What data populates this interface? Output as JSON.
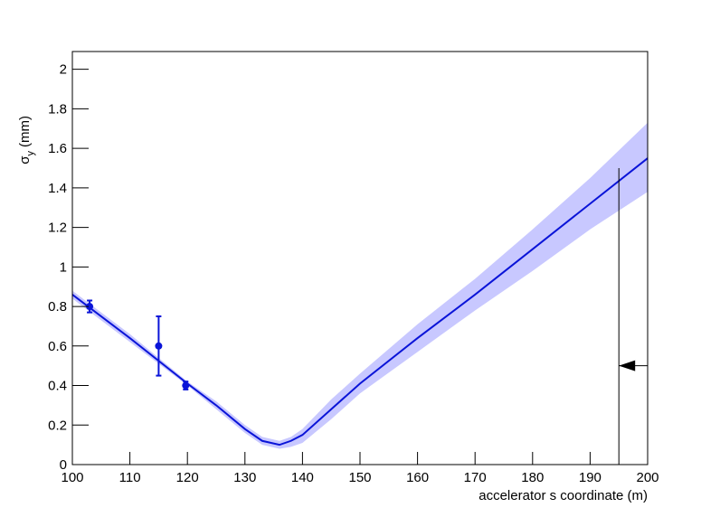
{
  "chart_data": {
    "type": "fit",
    "xlabel": "accelerator s coordinate (m)",
    "ylabel": {
      "symbol": "σ",
      "subscript": "y",
      "unit": "(mm)"
    },
    "xlim": [
      100,
      200
    ],
    "ylim": [
      0,
      2.09
    ],
    "xticks": [
      100,
      110,
      120,
      130,
      140,
      150,
      160,
      170,
      180,
      190,
      200
    ],
    "yticks": [
      0,
      0.2,
      0.4,
      0.6,
      0.8,
      1,
      1.2,
      1.4,
      1.6,
      1.8,
      2
    ],
    "band": {
      "color": "#c8c8ff",
      "x": [
        100,
        110,
        120,
        125,
        130,
        133,
        136,
        138,
        140,
        145,
        150,
        160,
        170,
        180,
        190,
        200
      ],
      "lower": [
        0.84,
        0.62,
        0.4,
        0.28,
        0.16,
        0.1,
        0.08,
        0.09,
        0.11,
        0.23,
        0.36,
        0.57,
        0.78,
        0.98,
        1.19,
        1.38
      ],
      "upper": [
        0.88,
        0.66,
        0.42,
        0.32,
        0.2,
        0.14,
        0.12,
        0.14,
        0.18,
        0.33,
        0.46,
        0.71,
        0.94,
        1.19,
        1.45,
        1.73
      ]
    },
    "fit": {
      "color": "#0a14d8",
      "x": [
        100,
        110,
        120,
        125,
        130,
        133,
        136,
        138,
        140,
        145,
        150,
        160,
        170,
        180,
        190,
        200
      ],
      "values": [
        0.86,
        0.64,
        0.41,
        0.3,
        0.18,
        0.12,
        0.1,
        0.12,
        0.15,
        0.28,
        0.41,
        0.64,
        0.86,
        1.09,
        1.32,
        1.55
      ]
    },
    "measurements": {
      "color": "#0a14d8",
      "x": [
        103,
        115,
        119.7
      ],
      "values": [
        0.8,
        0.6,
        0.4
      ],
      "errors": [
        0.03,
        0.15,
        0.02
      ]
    },
    "marker_line": {
      "x": 195,
      "y_top": 1.5
    },
    "arrow": {
      "y": 0.5,
      "x_from": 200,
      "x_to": 195
    }
  }
}
